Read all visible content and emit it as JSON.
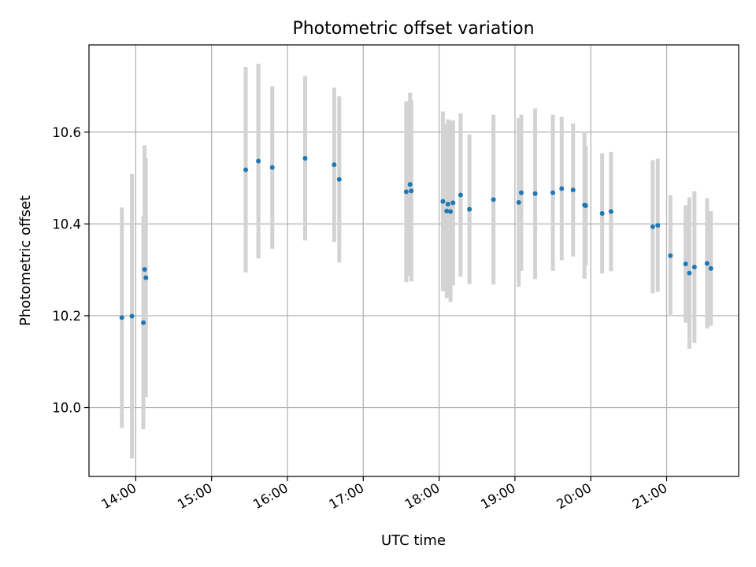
{
  "chart_data": {
    "type": "scatter",
    "title": "Photometric offset variation",
    "xlabel": "UTC time",
    "ylabel": "Photometric offset",
    "x_tick_labels": [
      "14:00",
      "15:00",
      "16:00",
      "17:00",
      "18:00",
      "19:00",
      "20:00",
      "21:00"
    ],
    "y_tick_labels": [
      "10.0",
      "10.2",
      "10.4",
      "10.6"
    ],
    "xlim": [
      "13:23",
      "21:57"
    ],
    "ylim": [
      9.85,
      10.79
    ],
    "grid": true,
    "colors": {
      "point": "#1f77b4",
      "errorbar": "#d3d3d3",
      "grid": "#b0b0b0"
    },
    "points": [
      {
        "t": "13:49",
        "y": 10.196,
        "err": 0.24
      },
      {
        "t": "13:57",
        "y": 10.199,
        "err": 0.31
      },
      {
        "t": "14:06",
        "y": 10.185,
        "err": 0.232
      },
      {
        "t": "14:07",
        "y": 10.301,
        "err": 0.27
      },
      {
        "t": "14:08",
        "y": 10.283,
        "err": 0.26
      },
      {
        "t": "15:27",
        "y": 10.518,
        "err": 0.224
      },
      {
        "t": "15:37",
        "y": 10.537,
        "err": 0.212
      },
      {
        "t": "15:48",
        "y": 10.523,
        "err": 0.177
      },
      {
        "t": "16:14",
        "y": 10.543,
        "err": 0.179
      },
      {
        "t": "16:37",
        "y": 10.529,
        "err": 0.168
      },
      {
        "t": "16:41",
        "y": 10.497,
        "err": 0.181
      },
      {
        "t": "17:34",
        "y": 10.47,
        "err": 0.197
      },
      {
        "t": "17:37",
        "y": 10.486,
        "err": 0.2
      },
      {
        "t": "17:38",
        "y": 10.472,
        "err": 0.197
      },
      {
        "t": "18:03",
        "y": 10.449,
        "err": 0.196
      },
      {
        "t": "18:06",
        "y": 10.428,
        "err": 0.19
      },
      {
        "t": "18:07",
        "y": 10.443,
        "err": 0.185
      },
      {
        "t": "18:09",
        "y": 10.427,
        "err": 0.197
      },
      {
        "t": "18:11",
        "y": 10.446,
        "err": 0.18
      },
      {
        "t": "18:17",
        "y": 10.463,
        "err": 0.178
      },
      {
        "t": "18:24",
        "y": 10.432,
        "err": 0.163
      },
      {
        "t": "18:43",
        "y": 10.453,
        "err": 0.185
      },
      {
        "t": "19:03",
        "y": 10.447,
        "err": 0.184
      },
      {
        "t": "19:05",
        "y": 10.468,
        "err": 0.17
      },
      {
        "t": "19:16",
        "y": 10.466,
        "err": 0.186
      },
      {
        "t": "19:30",
        "y": 10.468,
        "err": 0.17
      },
      {
        "t": "19:37",
        "y": 10.477,
        "err": 0.156
      },
      {
        "t": "19:46",
        "y": 10.474,
        "err": 0.145
      },
      {
        "t": "19:55",
        "y": 10.441,
        "err": 0.16
      },
      {
        "t": "19:56",
        "y": 10.44,
        "err": 0.13
      },
      {
        "t": "20:09",
        "y": 10.423,
        "err": 0.131
      },
      {
        "t": "20:16",
        "y": 10.427,
        "err": 0.13
      },
      {
        "t": "20:49",
        "y": 10.394,
        "err": 0.145
      },
      {
        "t": "20:53",
        "y": 10.397,
        "err": 0.145
      },
      {
        "t": "21:03",
        "y": 10.331,
        "err": 0.132
      },
      {
        "t": "21:15",
        "y": 10.313,
        "err": 0.128
      },
      {
        "t": "21:18",
        "y": 10.293,
        "err": 0.165
      },
      {
        "t": "21:22",
        "y": 10.306,
        "err": 0.165
      },
      {
        "t": "21:32",
        "y": 10.314,
        "err": 0.142
      },
      {
        "t": "21:35",
        "y": 10.303,
        "err": 0.125
      }
    ]
  }
}
